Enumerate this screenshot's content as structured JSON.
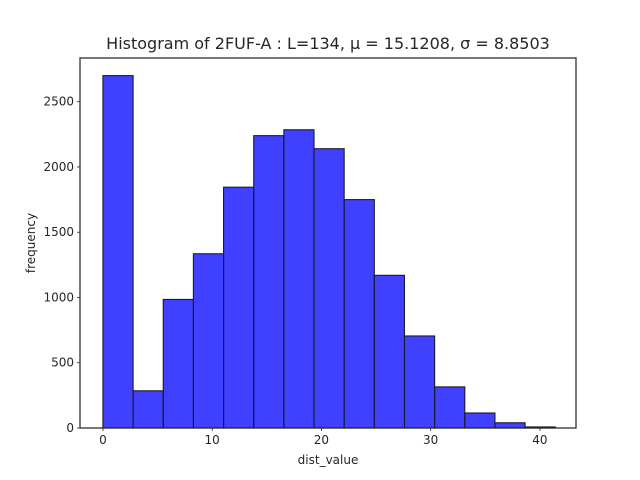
{
  "chart_data": {
    "type": "bar",
    "title": "Histogram of 2FUF-A : L=134, μ = 15.1208, σ = 8.8503",
    "xlabel": "dist_value",
    "ylabel": "frequency",
    "xlim": [
      -2.1,
      43.3
    ],
    "ylim": [
      0,
      2835
    ],
    "xticks": [
      0,
      10,
      20,
      30,
      40
    ],
    "yticks": [
      0,
      500,
      1000,
      1500,
      2000,
      2500
    ],
    "bin_edges": [
      0,
      2.76,
      5.52,
      8.28,
      11.04,
      13.8,
      16.56,
      19.32,
      22.08,
      24.84,
      27.6,
      30.36,
      33.12,
      35.88,
      38.64,
      41.4
    ],
    "values": [
      2700,
      285,
      985,
      1335,
      1845,
      2240,
      2285,
      2140,
      1750,
      1170,
      705,
      315,
      115,
      40,
      8
    ],
    "bar_color": "#0000ff",
    "bar_opacity": 0.75,
    "bar_edge_color": "#1a1a2e",
    "grid": false
  }
}
